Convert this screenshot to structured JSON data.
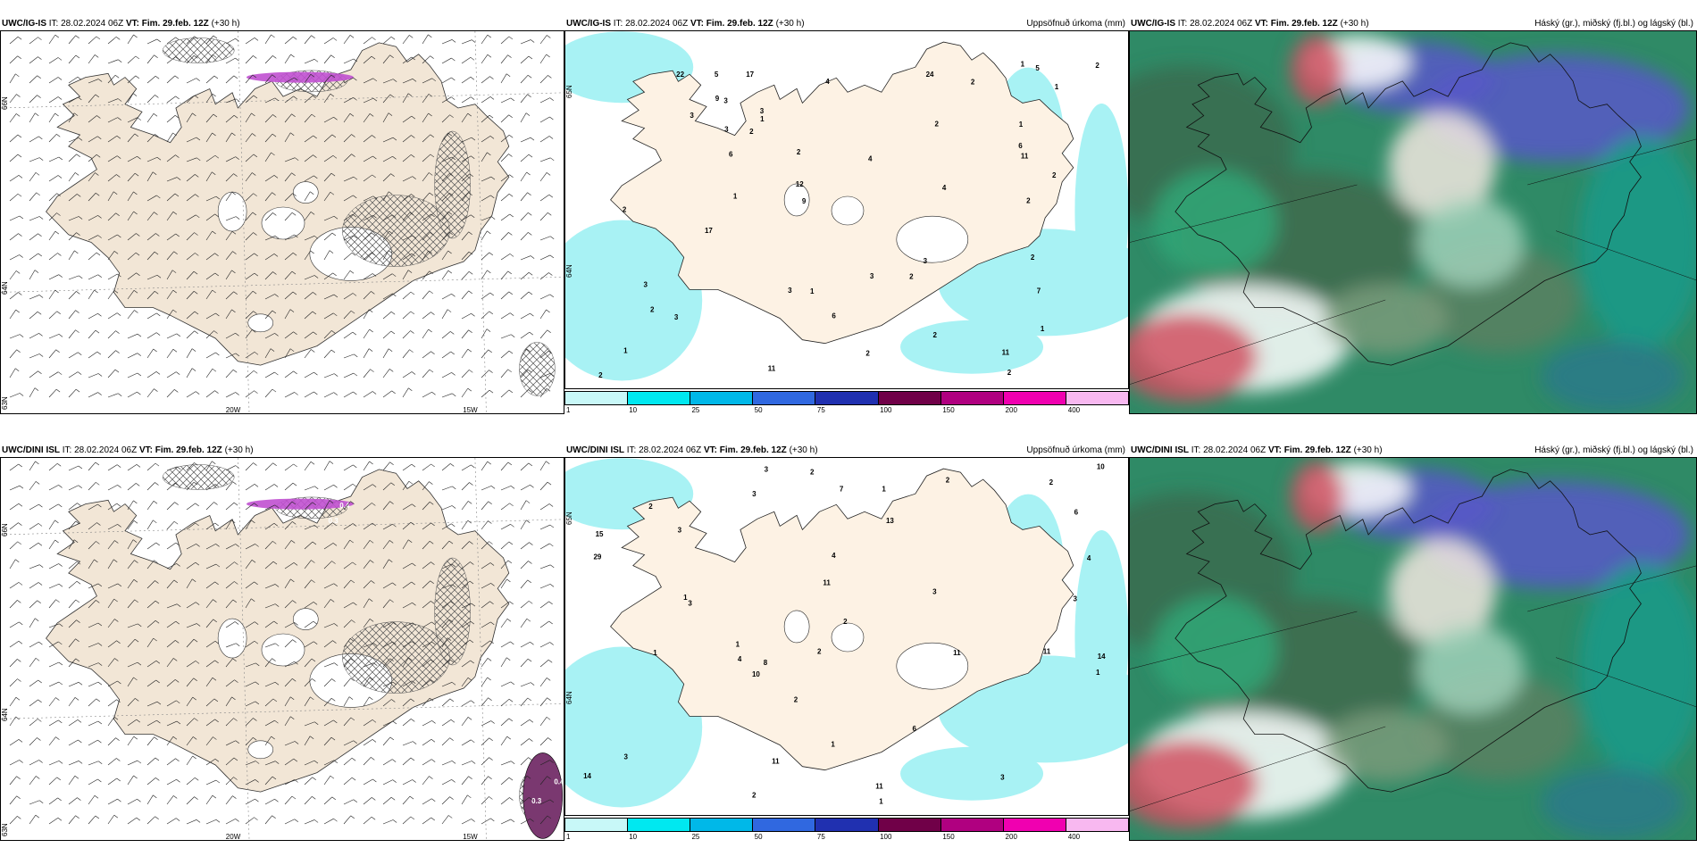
{
  "panels": [
    {
      "model": "UWC/IG-IS",
      "it_label": "IT:",
      "it_value": "28.02.2024 06Z",
      "vt_label": "VT:",
      "vt_value": "Fim. 29.feb. 12Z",
      "lead": "(+30 h)",
      "right_title": "",
      "type": "wind",
      "lat_labels": [
        "66N",
        "64N",
        "63N"
      ],
      "lon_labels": [
        "20W",
        "15W"
      ]
    },
    {
      "model": "UWC/IG-IS",
      "it_label": "IT:",
      "it_value": "28.02.2024 06Z",
      "vt_label": "VT:",
      "vt_value": "Fim. 29.feb. 12Z",
      "lead": "(+30 h)",
      "right_title": "Uppsöfnuð úrkoma (mm)",
      "type": "precip",
      "lat_labels": [
        "65N",
        "64N"
      ],
      "precip_numbers": [
        "5",
        "3",
        "2",
        "2",
        "1",
        "2",
        "1",
        "2",
        "2",
        "3",
        "3",
        "2",
        "1",
        "3",
        "2",
        "2",
        "4",
        "3",
        "2",
        "2",
        "6",
        "5",
        "1",
        "2",
        "3",
        "6",
        "4",
        "1",
        "2",
        "11",
        "3",
        "1",
        "17",
        "17",
        "22",
        "11",
        "4",
        "7",
        "3",
        "1",
        "2",
        "2",
        "3",
        "6",
        "2",
        "12",
        "11",
        "24",
        "9",
        "1",
        "9"
      ]
    },
    {
      "model": "UWC/IG-IS",
      "it_label": "IT:",
      "it_value": "28.02.2024 06Z",
      "vt_label": "VT:",
      "vt_value": "Fim. 29.feb. 12Z",
      "lead": "(+30 h)",
      "right_title": "Háský (gr.), miðský (fj.bl.) og lágský (bl.)",
      "type": "cloud"
    },
    {
      "model": "UWC/DINI ISL",
      "it_label": "IT:",
      "it_value": "28.02.2024 06Z",
      "vt_label": "VT:",
      "vt_value": "Fim. 29.feb. 12Z",
      "lead": "(+30 h)",
      "right_title": "",
      "type": "wind",
      "lat_labels": [
        "66N",
        "64N",
        "63N"
      ],
      "lon_labels": [
        "20W",
        "15W"
      ],
      "blob_values": [
        "0.4",
        "0.3",
        "0.4",
        "0.3"
      ]
    },
    {
      "model": "UWC/DINI ISL",
      "it_label": "IT:",
      "it_value": "28.02.2024 06Z",
      "vt_label": "VT:",
      "vt_value": "Fim. 29.feb. 12Z",
      "lead": "(+30 h)",
      "right_title": "Uppsöfnuð úrkoma (mm)",
      "type": "precip",
      "lat_labels": [
        "65N",
        "64N"
      ],
      "precip_numbers": [
        "2",
        "4",
        "11",
        "4",
        "1",
        "1",
        "1",
        "3",
        "4",
        "3",
        "1",
        "2",
        "1",
        "6",
        "3",
        "3",
        "2",
        "2",
        "3",
        "1",
        "10",
        "11",
        "14",
        "15",
        "29",
        "13",
        "14",
        "11",
        "1",
        "2",
        "2",
        "2",
        "3",
        "3",
        "3",
        "8",
        "10",
        "7",
        "11",
        "6",
        "11",
        "2"
      ]
    },
    {
      "model": "UWC/DINI ISL",
      "it_label": "IT:",
      "it_value": "28.02.2024 06Z",
      "vt_label": "VT:",
      "vt_value": "Fim. 29.feb. 12Z",
      "lead": "(+30 h)",
      "right_title": "Háský (gr.), miðský (fj.bl.) og lágský (bl.)",
      "type": "cloud"
    }
  ],
  "colorbar": {
    "labels": [
      "1",
      "10",
      "25",
      "50",
      "75",
      "100",
      "150",
      "200",
      "400"
    ],
    "colors": [
      "#c8f8f8",
      "#00e8f0",
      "#00b8e8",
      "#3068e0",
      "#2030b0",
      "#700048",
      "#b00080",
      "#f000b0",
      "#f8b8f0"
    ]
  },
  "colors": {
    "land": "#f2e6d6",
    "land_precip": "#fdf2e4",
    "sea_precip": "#a8f2f4",
    "high_cloud": "#30a878",
    "mid_cloud": "#5858c8",
    "low_cloud": "#d05060"
  }
}
